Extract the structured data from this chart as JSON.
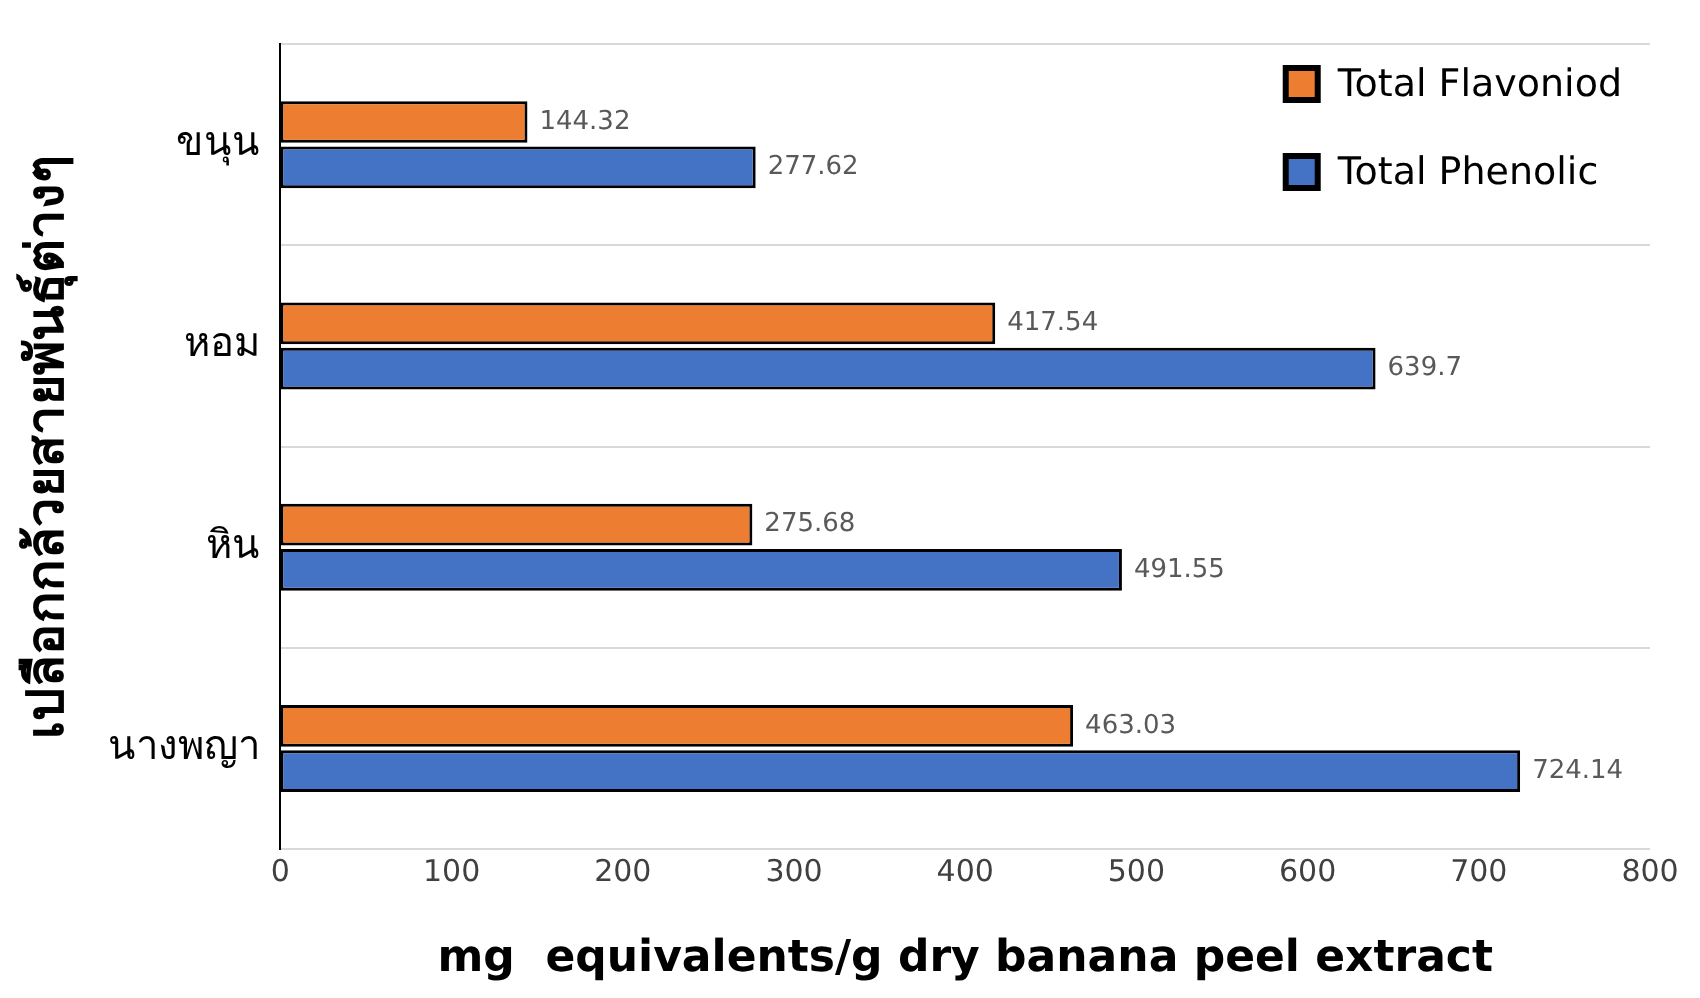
{
  "chart_data": {
    "type": "bar",
    "orientation": "horizontal",
    "xlabel": "mg  equivalents/g dry banana peel extract",
    "ylabel": "เปลือกกล้วยสายพันธุ์ต่างๆ",
    "categories": [
      "ขนุน",
      "หอม",
      "หิน",
      "นางพญา"
    ],
    "series": [
      {
        "name": "Total Flavoniod",
        "color": "#ed7d31",
        "values": [
          144.32,
          417.54,
          275.68,
          463.03
        ]
      },
      {
        "name": "Total Phenolic",
        "color": "#4472c4",
        "values": [
          277.62,
          639.7,
          491.55,
          724.14
        ]
      }
    ],
    "xlim": [
      0,
      800
    ],
    "xticks": [
      0,
      100,
      200,
      300,
      400,
      500,
      600,
      700,
      800
    ],
    "grid": "y",
    "legend": "top right",
    "data_labels": true
  }
}
